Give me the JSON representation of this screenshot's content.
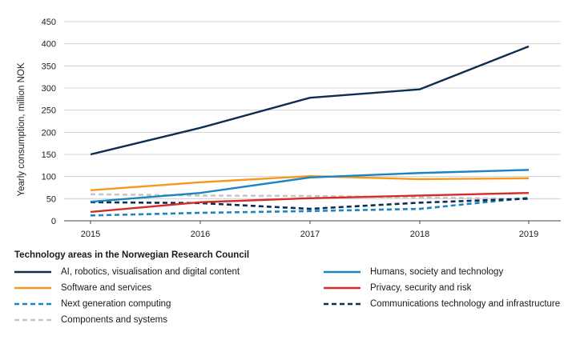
{
  "chart_data": {
    "type": "line",
    "title": "",
    "xlabel": "",
    "ylabel": "Yearly consumption, million NOK",
    "x": [
      2015,
      2016,
      2017,
      2018,
      2019
    ],
    "ylim": [
      0,
      450
    ],
    "yticks": [
      0,
      50,
      100,
      150,
      200,
      250,
      300,
      350,
      400,
      450
    ],
    "grid": true,
    "legend_title": "Technology areas in the Norwegian Research Council",
    "legend_position": "bottom",
    "series": [
      {
        "name": "AI, robotics, visualisation and digital content",
        "color": "#0d2e50",
        "style": "solid",
        "values": [
          150,
          210,
          278,
          297,
          394
        ]
      },
      {
        "name": "Humans, society and technology",
        "color": "#1a85c0",
        "style": "solid",
        "values": [
          43,
          63,
          98,
          108,
          115
        ]
      },
      {
        "name": "Software and services",
        "color": "#f39a1e",
        "style": "solid",
        "values": [
          69,
          87,
          101,
          94,
          96
        ]
      },
      {
        "name": "Privacy, security and risk",
        "color": "#d62b2b",
        "style": "solid",
        "values": [
          20,
          42,
          51,
          57,
          63
        ]
      },
      {
        "name": "Next generation computing",
        "color": "#1a85c0",
        "style": "dashed",
        "values": [
          12,
          18,
          22,
          27,
          52
        ]
      },
      {
        "name": "Communications technology and infrastructure",
        "color": "#0d2e50",
        "style": "dashed",
        "values": [
          42,
          40,
          27,
          41,
          50
        ]
      },
      {
        "name": "Components and systems",
        "color": "#c6c6c6",
        "style": "dashed",
        "values": [
          60,
          57,
          56,
          53,
          49
        ]
      }
    ]
  }
}
